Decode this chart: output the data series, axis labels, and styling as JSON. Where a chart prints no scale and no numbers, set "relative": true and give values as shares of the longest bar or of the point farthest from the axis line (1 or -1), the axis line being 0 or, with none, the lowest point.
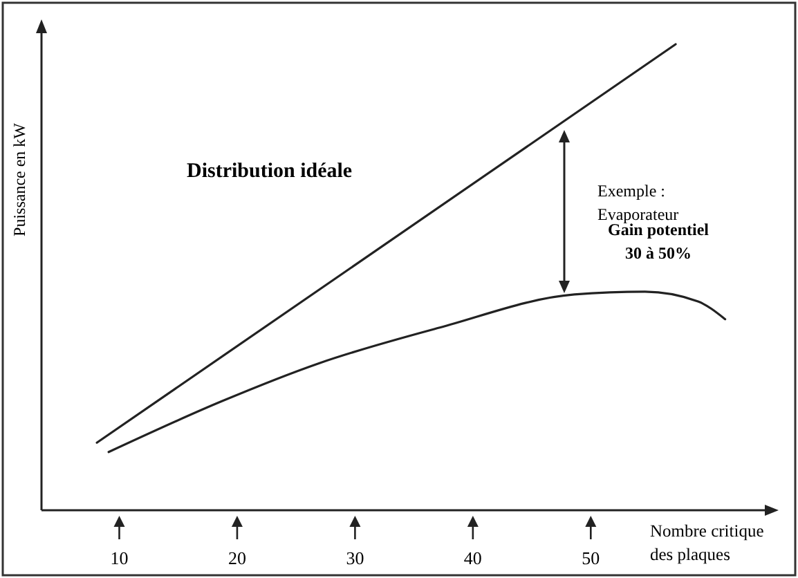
{
  "chart_data": {
    "type": "line",
    "relative": true,
    "xlabel": "Nombre critique\ndes plaques",
    "ylabel": "Puissance en kW",
    "xlim": [
      3.4,
      65
    ],
    "xticks": [
      10,
      20,
      30,
      40,
      50
    ],
    "line_style": "solid",
    "annotations": [
      "Distribution idéale",
      "Exemple :\nEvaporateur",
      "Gain potentiel\n30 à 50%"
    ],
    "series": [
      {
        "color": "#222222",
        "x": [
          8.1,
          57.2
        ],
        "values": [
          0.145,
          1
        ]
      },
      {
        "color": "#222222",
        "x": [
          9.1,
          18.7,
          26.9,
          37.2,
          48.6,
          54.6,
          59.1,
          61.4
        ],
        "values": [
          0.125,
          0.234,
          0.315,
          0.392,
          0.463,
          0.469,
          0.448,
          0.41
        ]
      }
    ]
  }
}
